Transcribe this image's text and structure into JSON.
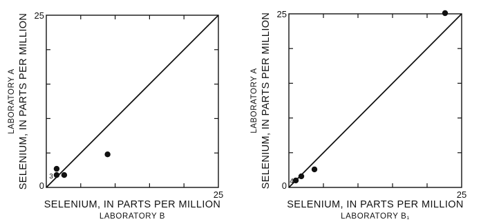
{
  "chart_data": [
    {
      "type": "scatter",
      "xlabel": "SELENIUM, IN PARTS PER MILLION",
      "xlabel_sub": "LABORATORY B",
      "ylabel": "SELENIUM, IN PARTS PER MILLION",
      "ylabel_sub": "LABORATORY A",
      "xlim": [
        0,
        25
      ],
      "ylim": [
        0,
        25
      ],
      "x_tick_labels": [
        {
          "value": 25,
          "label": "25"
        }
      ],
      "y_tick_labels": [
        {
          "value": 0,
          "label": "0"
        },
        {
          "value": 25,
          "label": "25"
        }
      ],
      "minor_ticks": [
        5,
        10,
        15,
        20
      ],
      "reference_line": {
        "from": [
          0,
          0
        ],
        "to": [
          25,
          25
        ]
      },
      "points": [
        {
          "x": 1.5,
          "y": 2.7
        },
        {
          "x": 1.5,
          "y": 1.8
        },
        {
          "x": 2.6,
          "y": 1.8
        },
        {
          "x": 8.9,
          "y": 4.8
        }
      ],
      "annotations": [
        {
          "x": 0.7,
          "y": 1.3,
          "text": "3"
        }
      ]
    },
    {
      "type": "scatter",
      "xlabel": "SELENIUM, IN PARTS PER MILLION",
      "xlabel_sub": "LABORATORY B₁",
      "ylabel": "SELENIUM, IN PARTS PER MILLION",
      "ylabel_sub": "LABORATORY A",
      "xlim": [
        0,
        25
      ],
      "ylim": [
        0,
        25
      ],
      "x_tick_labels": [
        {
          "value": 25,
          "label": "25"
        }
      ],
      "y_tick_labels": [
        {
          "value": 0,
          "label": "0"
        },
        {
          "value": 25,
          "label": "25"
        }
      ],
      "minor_ticks": [
        5,
        10,
        15,
        20
      ],
      "reference_line": {
        "from": [
          0,
          0
        ],
        "to": [
          25,
          25
        ]
      },
      "points": [
        {
          "x": 1.0,
          "y": 1.0
        },
        {
          "x": 1.8,
          "y": 1.6
        },
        {
          "x": 3.7,
          "y": 2.6
        },
        {
          "x": 22.6,
          "y": 25.1
        }
      ],
      "annotations": [
        {
          "x": 0.4,
          "y": 0.6,
          "text": "4"
        }
      ]
    }
  ]
}
